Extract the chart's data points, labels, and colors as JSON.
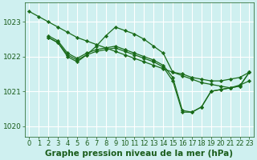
{
  "background_color": "#cff0f0",
  "plot_bg_color": "#cff0f0",
  "grid_color": "#aadddd",
  "line_color": "#1a6b1a",
  "marker_color": "#1a6b1a",
  "xlabel": "Graphe pression niveau de la mer (hPa)",
  "xlim": [
    -0.5,
    23.5
  ],
  "ylim": [
    1019.7,
    1023.55
  ],
  "yticks": [
    1020,
    1021,
    1022,
    1023
  ],
  "xticks": [
    0,
    1,
    2,
    3,
    4,
    5,
    6,
    7,
    8,
    9,
    10,
    11,
    12,
    13,
    14,
    15,
    16,
    17,
    18,
    19,
    20,
    21,
    22,
    23
  ],
  "series": [
    {
      "x": [
        0,
        1,
        2,
        3,
        4,
        5,
        6,
        7,
        8,
        9,
        10,
        11,
        12,
        13,
        14,
        15,
        16,
        17,
        18,
        19,
        20,
        21,
        22,
        23
      ],
      "y": [
        1023.3,
        1023.15,
        1023.0,
        1022.85,
        1022.7,
        1022.55,
        1022.45,
        1022.35,
        1022.25,
        1022.15,
        1022.05,
        1021.95,
        1021.85,
        1021.75,
        1021.65,
        1021.55,
        1021.45,
        1021.35,
        1021.25,
        1021.2,
        1021.15,
        1021.1,
        1021.18,
        1021.3
      ]
    },
    {
      "x": [
        2,
        3,
        4,
        5,
        6,
        7,
        8,
        9,
        10,
        11,
        12,
        13,
        14,
        15,
        16,
        17,
        18,
        19,
        20,
        21,
        22,
        23
      ],
      "y": [
        1022.55,
        1022.4,
        1022.0,
        1021.85,
        1022.05,
        1022.3,
        1022.6,
        1022.85,
        1022.75,
        1022.65,
        1022.5,
        1022.3,
        1022.1,
        1021.55,
        1021.5,
        1021.4,
        1021.35,
        1021.3,
        1021.3,
        1021.35,
        1021.4,
        1021.55
      ]
    },
    {
      "x": [
        2,
        3,
        4,
        5,
        6,
        7,
        8,
        9,
        10,
        11,
        12,
        13,
        14,
        15,
        16,
        17,
        18,
        19,
        20,
        21,
        22,
        23
      ],
      "y": [
        1022.6,
        1022.45,
        1022.1,
        1021.95,
        1022.1,
        1022.2,
        1022.25,
        1022.3,
        1022.2,
        1022.1,
        1022.0,
        1021.9,
        1021.75,
        1021.4,
        1020.45,
        1020.4,
        1020.55,
        1021.0,
        1021.05,
        1021.1,
        1021.15,
        1021.55
      ]
    },
    {
      "x": [
        2,
        3,
        4,
        5,
        6,
        7,
        8,
        9,
        10,
        11,
        12,
        13,
        14,
        15,
        16,
        17,
        18,
        19,
        20,
        21,
        22,
        23
      ],
      "y": [
        1022.55,
        1022.4,
        1022.05,
        1021.9,
        1022.05,
        1022.15,
        1022.2,
        1022.25,
        1022.15,
        1022.05,
        1021.95,
        1021.85,
        1021.7,
        1021.3,
        1020.4,
        1020.4,
        1020.55,
        1021.0,
        1021.05,
        1021.1,
        1021.15,
        1021.55
      ]
    }
  ],
  "title_fontsize": 7.5,
  "tick_fontsize": 6.0,
  "font_color": "#1a5c1a",
  "marker": "D",
  "marker_size": 2.2,
  "linewidth": 0.9
}
